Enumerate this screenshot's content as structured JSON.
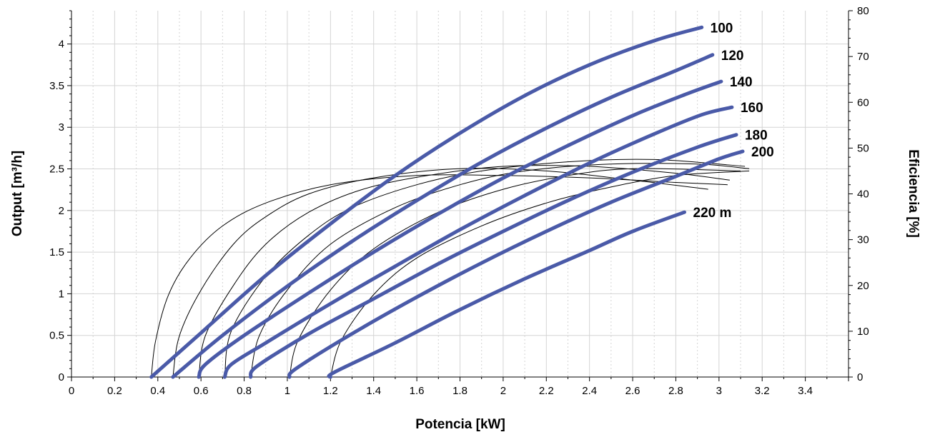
{
  "chart_data": {
    "type": "line",
    "title": "",
    "xlabel": "Potencia [kW]",
    "ylabel": "Output [m³/h]",
    "y2label": "Eficiencia [%]",
    "xlim": [
      0,
      3.6
    ],
    "ylim": [
      0,
      4.4
    ],
    "y2lim": [
      0,
      80
    ],
    "x_ticks": [
      "0",
      "0.2",
      "0.4",
      "0.6",
      "0.8",
      "1",
      "1.2",
      "1.4",
      "1.6",
      "1.8",
      "2",
      "2.2",
      "2.4",
      "2.6",
      "2.8",
      "3",
      "3.2",
      "3.4"
    ],
    "y_ticks": [
      "0",
      "0.5",
      "1",
      "1.5",
      "2",
      "2.5",
      "3",
      "3.5",
      "4"
    ],
    "y2_ticks": [
      "0",
      "10",
      "20",
      "30",
      "40",
      "50",
      "60",
      "70",
      "80"
    ],
    "grid": true,
    "colors": {
      "output": "#4a5aa8",
      "efficiency": "#000000"
    },
    "series": [
      {
        "name": "100",
        "label": "100",
        "x": [
          0.37,
          0.6,
          0.9,
          1.2,
          1.5,
          1.8,
          2.1,
          2.4,
          2.7,
          2.92
        ],
        "y": [
          0.0,
          0.53,
          1.22,
          1.84,
          2.42,
          2.93,
          3.38,
          3.75,
          4.04,
          4.2
        ]
      },
      {
        "name": "120",
        "label": "120",
        "x": [
          0.47,
          0.7,
          1.0,
          1.3,
          1.6,
          1.9,
          2.2,
          2.5,
          2.8,
          2.97
        ],
        "y": [
          0.0,
          0.5,
          1.09,
          1.63,
          2.12,
          2.58,
          2.99,
          3.36,
          3.68,
          3.87
        ]
      },
      {
        "name": "140",
        "label": "140",
        "x": [
          0.59,
          0.62,
          0.8,
          1.1,
          1.4,
          1.7,
          2.0,
          2.3,
          2.6,
          2.85,
          3.01
        ],
        "y": [
          0.0,
          0.15,
          0.5,
          1.01,
          1.5,
          1.96,
          2.39,
          2.78,
          3.14,
          3.4,
          3.55
        ]
      },
      {
        "name": "160",
        "label": "160",
        "x": [
          0.71,
          0.74,
          0.9,
          1.2,
          1.5,
          1.8,
          2.1,
          2.4,
          2.7,
          2.92,
          3.06
        ],
        "y": [
          0.0,
          0.15,
          0.41,
          0.88,
          1.33,
          1.77,
          2.18,
          2.57,
          2.92,
          3.15,
          3.24
        ]
      },
      {
        "name": "180",
        "label": "180",
        "x": [
          0.83,
          0.86,
          1.1,
          1.4,
          1.7,
          2.0,
          2.3,
          2.6,
          2.9,
          3.08
        ],
        "y": [
          0.0,
          0.13,
          0.52,
          0.94,
          1.36,
          1.75,
          2.12,
          2.46,
          2.76,
          2.91
        ]
      },
      {
        "name": "200",
        "label": "200",
        "x": [
          1.01,
          1.04,
          1.3,
          1.6,
          1.9,
          2.2,
          2.5,
          2.8,
          3.0,
          3.11
        ],
        "y": [
          0.0,
          0.1,
          0.52,
          0.96,
          1.37,
          1.75,
          2.1,
          2.41,
          2.62,
          2.71
        ]
      },
      {
        "name": "220 m",
        "label": "220 m",
        "x": [
          1.2,
          1.22,
          1.5,
          1.8,
          2.1,
          2.4,
          2.6,
          2.84
        ],
        "y": [
          0.0,
          0.06,
          0.41,
          0.81,
          1.18,
          1.52,
          1.75,
          1.98
        ]
      }
    ],
    "efficiency_series": [
      {
        "x": [
          0.37,
          0.39,
          0.45,
          0.55,
          0.7,
          0.9,
          1.2,
          1.6,
          2.0,
          2.4,
          2.8,
          3.04
        ],
        "y": [
          0.0,
          8.0,
          18.0,
          26.0,
          33.0,
          38.0,
          42.0,
          44.0,
          44.0,
          43.5,
          42.5,
          42.0
        ]
      },
      {
        "x": [
          0.47,
          0.5,
          0.6,
          0.75,
          0.9,
          1.1,
          1.4,
          1.8,
          2.2,
          2.6,
          2.95
        ],
        "y": [
          0.0,
          9.0,
          19.0,
          29.0,
          35.0,
          40.0,
          43.5,
          45.5,
          45.0,
          43.0,
          41.0
        ]
      },
      {
        "x": [
          0.59,
          0.62,
          0.75,
          0.9,
          1.1,
          1.35,
          1.65,
          2.0,
          2.4,
          2.8,
          3.05
        ],
        "y": [
          0.0,
          9.0,
          20.0,
          29.0,
          36.0,
          41.0,
          44.0,
          46.0,
          46.0,
          44.5,
          43.0
        ]
      },
      {
        "x": [
          0.71,
          0.74,
          0.9,
          1.1,
          1.3,
          1.6,
          1.9,
          2.3,
          2.7,
          3.12
        ],
        "y": [
          0.0,
          10.0,
          22.0,
          31.0,
          37.0,
          42.0,
          45.0,
          47.0,
          47.5,
          46.0
        ]
      },
      {
        "x": [
          0.83,
          0.87,
          1.0,
          1.2,
          1.5,
          1.8,
          2.1,
          2.5,
          2.9,
          3.14
        ],
        "y": [
          0.0,
          9.0,
          19.0,
          29.0,
          37.0,
          42.0,
          45.0,
          46.5,
          46.5,
          45.5
        ]
      },
      {
        "x": [
          1.01,
          1.05,
          1.2,
          1.4,
          1.7,
          2.0,
          2.3,
          2.6,
          3.1
        ],
        "y": [
          0.0,
          8.0,
          19.0,
          28.0,
          36.0,
          41.0,
          44.0,
          45.5,
          45.0
        ]
      },
      {
        "x": [
          1.2,
          1.25,
          1.4,
          1.6,
          1.9,
          2.2,
          2.5,
          2.8,
          3.14
        ],
        "y": [
          0.0,
          8.0,
          18.0,
          26.0,
          33.0,
          38.0,
          41.5,
          44.0,
          45.0
        ]
      }
    ]
  }
}
